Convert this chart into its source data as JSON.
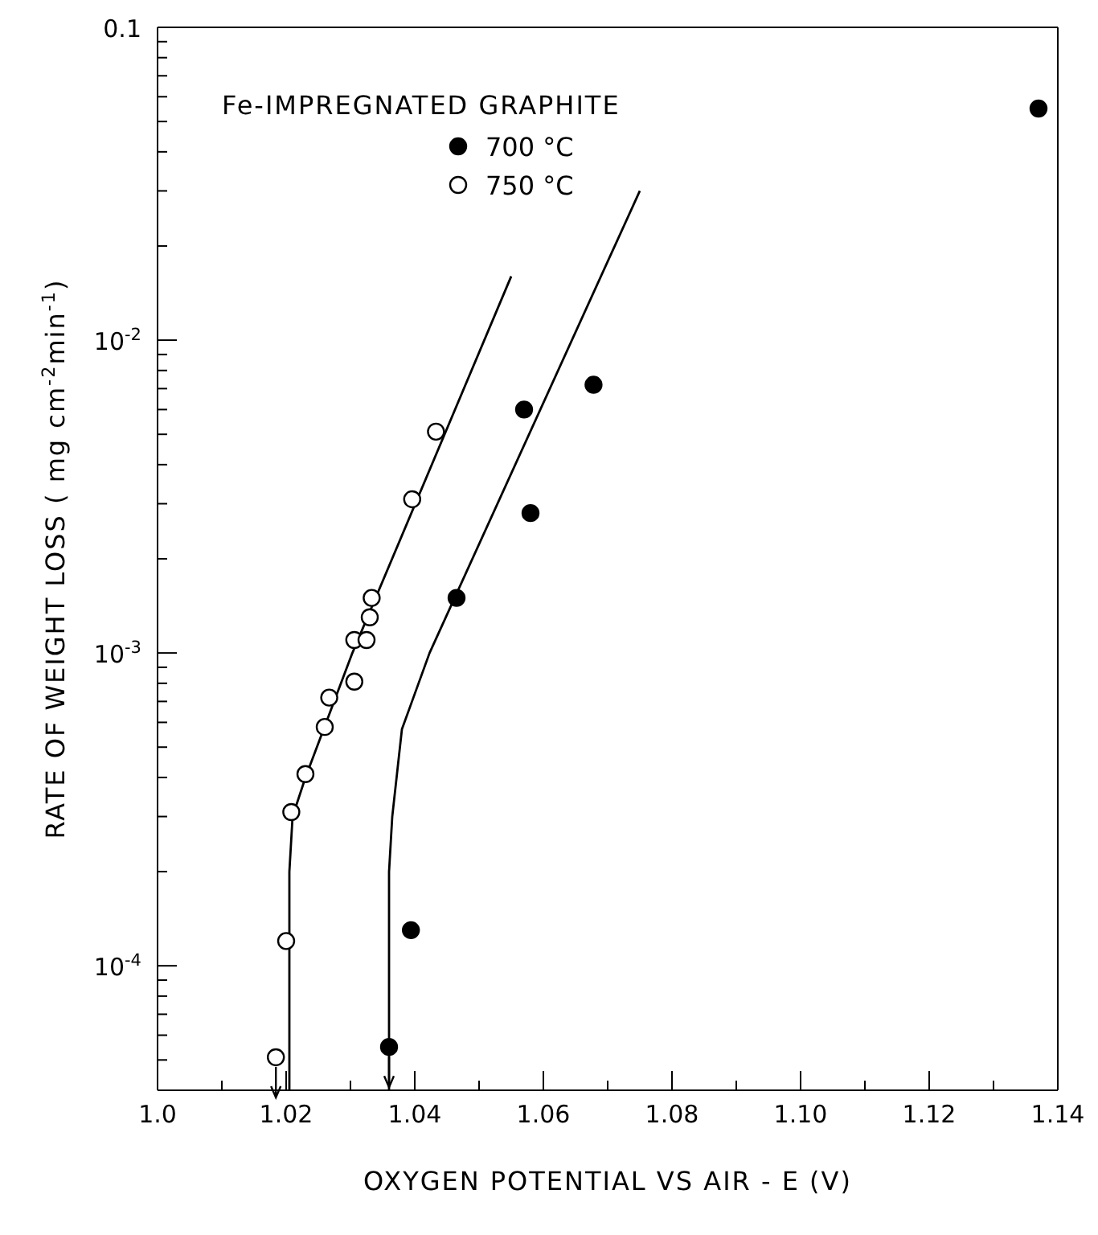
{
  "chart_data": {
    "type": "scatter",
    "xlabel": "OXYGEN POTENTIAL VS AIR - E (V)",
    "ylabel": "RATE OF WEIGHT LOSS ( mg cm$^{-2}$min$^{-1}$)",
    "legend_title": "Fe-IMPREGNATED GRAPHITE",
    "legend": "top left",
    "log": "y",
    "marker": "circle",
    "xlim": [
      1.0,
      1.14
    ],
    "xticks": [
      {
        "value": 1.0,
        "label": "1.0"
      },
      {
        "value": 1.01,
        "label": null
      },
      1.02,
      {
        "value": 1.03,
        "label": null
      },
      1.04,
      {
        "value": 1.05,
        "label": null
      },
      1.06,
      {
        "value": 1.07,
        "label": null
      },
      1.08,
      {
        "value": 1.09,
        "label": null
      },
      {
        "value": 1.1,
        "label": "1.10"
      },
      {
        "value": 1.11,
        "label": null
      },
      1.12,
      {
        "value": 1.13,
        "label": null
      },
      1.14
    ],
    "ylim": [
      4e-05,
      0.1
    ],
    "yticks": [
      {
        "value": 5e-05,
        "label": null
      },
      {
        "value": 6e-05,
        "label": null
      },
      {
        "value": 7e-05,
        "label": null
      },
      {
        "value": 8e-05,
        "label": null
      },
      {
        "value": 9e-05,
        "label": null
      },
      {
        "value": 0.0001,
        "label": "10$^{-4}$"
      },
      {
        "value": 0.0002,
        "label": null
      },
      {
        "value": 0.0003,
        "label": null
      },
      {
        "value": 0.0004,
        "label": null
      },
      {
        "value": 0.0005,
        "label": null
      },
      {
        "value": 0.0006,
        "label": null
      },
      {
        "value": 0.0007,
        "label": null
      },
      {
        "value": 0.0008,
        "label": null
      },
      {
        "value": 0.0009,
        "label": null
      },
      {
        "value": 0.001,
        "label": "10$^{-3}$"
      },
      {
        "value": 0.002,
        "label": null
      },
      {
        "value": 0.003,
        "label": null
      },
      {
        "value": 0.004,
        "label": null
      },
      {
        "value": 0.005,
        "label": null
      },
      {
        "value": 0.006,
        "label": null
      },
      {
        "value": 0.007,
        "label": null
      },
      {
        "value": 0.008,
        "label": null
      },
      {
        "value": 0.009,
        "label": null
      },
      {
        "value": 0.01,
        "label": "10$^{-2}$"
      },
      {
        "value": 0.02,
        "label": null
      },
      {
        "value": 0.03,
        "label": null
      },
      {
        "value": 0.04,
        "label": null
      },
      {
        "value": 0.05,
        "label": null
      },
      {
        "value": 0.06,
        "label": null
      },
      {
        "value": 0.07,
        "label": null
      },
      {
        "value": 0.08,
        "label": null
      },
      {
        "value": 0.09,
        "label": null
      },
      {
        "value": 0.1,
        "label": "0.1"
      }
    ],
    "series": [
      {
        "name": "700 °C",
        "color": "#000000",
        "x": [
          1.036,
          1.0394,
          1.0465,
          1.057,
          1.058,
          1.0678,
          1.137
        ],
        "values": [
          5.5e-05,
          0.00013,
          0.0015,
          0.006,
          0.0028,
          0.0072,
          0.055
        ]
      },
      {
        "name": "750 °C",
        "color": "#ffffff",
        "x": [
          1.0184,
          1.02,
          1.0208,
          1.023,
          1.026,
          1.0267,
          1.0306,
          1.0306,
          1.0325,
          1.033,
          1.0333,
          1.0396,
          1.0433
        ],
        "values": [
          5.1e-05,
          0.00012,
          0.00031,
          0.00041,
          0.00058,
          0.00072,
          0.00081,
          0.0011,
          0.0011,
          0.0013,
          0.0015,
          0.0031,
          0.0051
        ]
      },
      {
        "type": "line",
        "color": "#000000",
        "marker": "none",
        "x": [
          1.0205,
          1.0205,
          1.021,
          1.023,
          1.0303,
          1.055
        ],
        "values": [
          4e-05,
          0.0002,
          0.0003,
          0.0004,
          0.001,
          0.016
        ]
      },
      {
        "type": "line",
        "color": "#000000",
        "marker": "none",
        "x": [
          1.036,
          1.036,
          1.0365,
          1.038,
          1.0423,
          1.075
        ],
        "values": [
          4e-05,
          0.0002,
          0.0003,
          0.00057,
          0.001,
          0.03
        ]
      }
    ]
  }
}
